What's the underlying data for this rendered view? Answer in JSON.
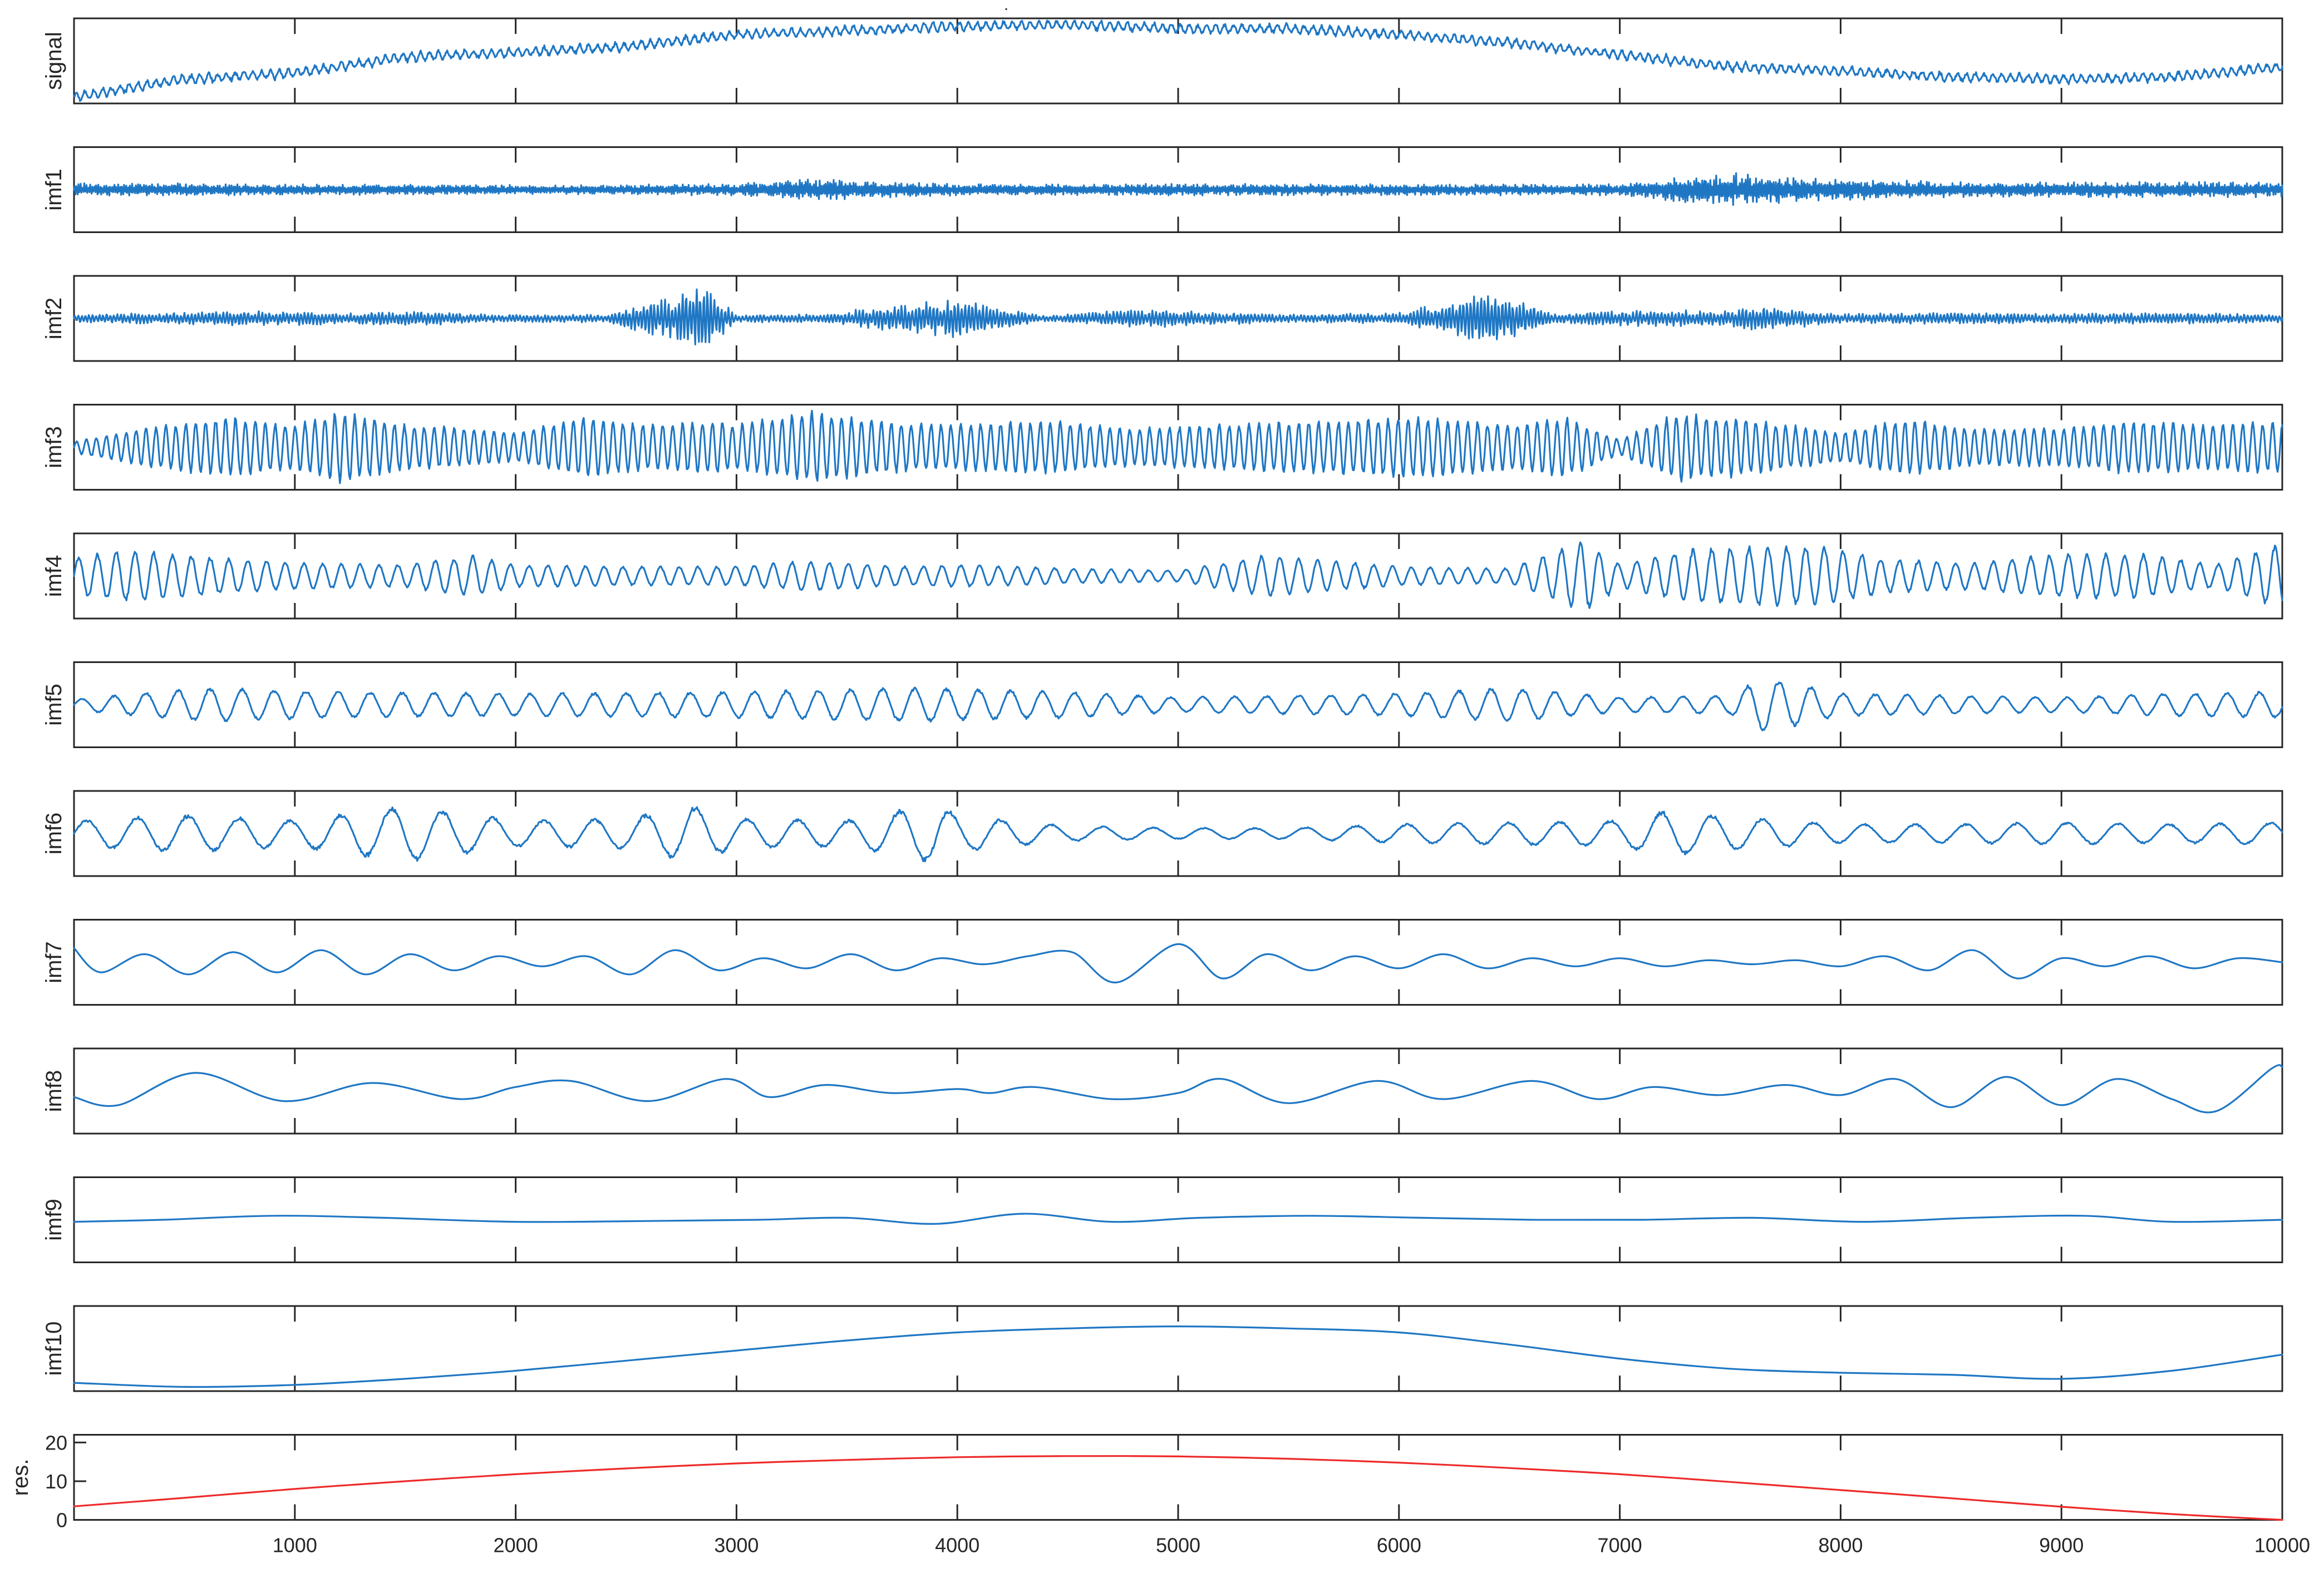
{
  "chart_data": {
    "type": "line",
    "title": ".",
    "xlim": [
      0,
      10000
    ],
    "x_ticks": [
      1000,
      2000,
      3000,
      4000,
      5000,
      6000,
      7000,
      8000,
      9000,
      10000
    ],
    "x_tick_labels": [
      "1000",
      "2000",
      "3000",
      "4000",
      "5000",
      "6000",
      "7000",
      "8000",
      "9000",
      "10000"
    ],
    "grid": false,
    "colors": {
      "trace": "#1f77c4",
      "residual": "#ee2a2a",
      "axes": "#262626"
    },
    "panels": [
      {
        "name": "signal",
        "label": "signal",
        "color": "#1f77c4",
        "x": [
          0,
          500,
          1000,
          1500,
          2000,
          2500,
          3000,
          3500,
          4000,
          4500,
          5000,
          5500,
          6000,
          6500,
          7000,
          7500,
          8000,
          8500,
          9000,
          9500,
          10000
        ],
        "y": [
          -0.9,
          -0.45,
          -0.3,
          0.1,
          0.2,
          0.35,
          0.65,
          0.75,
          0.85,
          0.9,
          0.8,
          0.8,
          0.65,
          0.45,
          0.15,
          -0.15,
          -0.25,
          -0.4,
          -0.45,
          -0.4,
          -0.15
        ]
      },
      {
        "name": "imf1",
        "label": "imf1",
        "color": "#1f77c4",
        "envelope_x": [
          0,
          1000,
          2000,
          3000,
          3300,
          4000,
          5000,
          6000,
          7000,
          7200,
          7500,
          7900,
          8500,
          9000,
          10000
        ],
        "envelope": [
          0.18,
          0.15,
          0.12,
          0.15,
          0.3,
          0.15,
          0.15,
          0.15,
          0.15,
          0.3,
          0.45,
          0.3,
          0.2,
          0.2,
          0.2
        ]
      },
      {
        "name": "imf2",
        "label": "imf2",
        "color": "#1f77c4",
        "envelope_x": [
          0,
          800,
          1200,
          1500,
          1900,
          2400,
          2700,
          2850,
          3000,
          3400,
          3700,
          4000,
          4400,
          4800,
          5500,
          6000,
          6450,
          6700,
          7000,
          7500,
          7650,
          8000,
          8500,
          9000,
          9500,
          10000
        ],
        "envelope": [
          0.1,
          0.2,
          0.15,
          0.2,
          0.1,
          0.1,
          0.55,
          0.9,
          0.1,
          0.12,
          0.35,
          0.5,
          0.08,
          0.25,
          0.1,
          0.15,
          0.75,
          0.12,
          0.2,
          0.22,
          0.35,
          0.12,
          0.15,
          0.12,
          0.15,
          0.1
        ]
      },
      {
        "name": "imf3",
        "label": "imf3",
        "color": "#1f77c4",
        "envelope_x": [
          0,
          300,
          700,
          1000,
          1200,
          1500,
          1800,
          2000,
          2300,
          2600,
          2900,
          3000,
          3350,
          3650,
          3900,
          4400,
          4800,
          5200,
          5600,
          6100,
          6500,
          6750,
          7000,
          7250,
          7500,
          8000,
          8300,
          8600,
          9000,
          9300,
          9700,
          10000
        ],
        "envelope": [
          0.15,
          0.5,
          0.8,
          0.6,
          0.95,
          0.6,
          0.5,
          0.4,
          0.8,
          0.6,
          0.7,
          0.6,
          0.95,
          0.7,
          0.6,
          0.7,
          0.5,
          0.6,
          0.7,
          0.8,
          0.6,
          0.8,
          0.2,
          0.9,
          0.8,
          0.4,
          0.75,
          0.5,
          0.5,
          0.7,
          0.6,
          0.7
        ]
      },
      {
        "name": "imf4",
        "label": "imf4",
        "color": "#1f77c4",
        "envelope_x": [
          0,
          250,
          500,
          1000,
          1500,
          1800,
          2000,
          2500,
          3000,
          3300,
          3800,
          4000,
          4500,
          5000,
          5400,
          6000,
          6500,
          6850,
          7000,
          7300,
          7650,
          7900,
          8200,
          8600,
          9000,
          9350,
          9700,
          10000
        ],
        "envelope": [
          0.5,
          0.7,
          0.55,
          0.35,
          0.3,
          0.55,
          0.3,
          0.25,
          0.25,
          0.4,
          0.25,
          0.3,
          0.2,
          0.15,
          0.55,
          0.25,
          0.2,
          0.95,
          0.3,
          0.7,
          0.8,
          0.8,
          0.45,
          0.35,
          0.6,
          0.6,
          0.3,
          0.9
        ]
      },
      {
        "name": "imf5",
        "label": "imf5",
        "color": "#1f77c4",
        "envelope_x": [
          0,
          600,
          1200,
          2000,
          3000,
          3800,
          4500,
          5000,
          6000,
          6500,
          7000,
          7500,
          7650,
          8000,
          8500,
          9000,
          9500,
          10000
        ],
        "envelope": [
          0.15,
          0.45,
          0.35,
          0.3,
          0.35,
          0.45,
          0.35,
          0.2,
          0.3,
          0.45,
          0.2,
          0.25,
          0.75,
          0.3,
          0.25,
          0.2,
          0.3,
          0.35
        ]
      },
      {
        "name": "imf6",
        "label": "imf6",
        "color": "#1f77c4",
        "envelope_x": [
          0,
          500,
          1000,
          1500,
          2000,
          2500,
          2800,
          3000,
          3500,
          3900,
          4000,
          4500,
          5000,
          5500,
          6000,
          6500,
          7000,
          7200,
          7500,
          8000,
          8500,
          9000,
          9500,
          10000
        ],
        "envelope": [
          0.35,
          0.5,
          0.35,
          0.75,
          0.35,
          0.4,
          0.75,
          0.4,
          0.35,
          0.8,
          0.5,
          0.2,
          0.15,
          0.15,
          0.25,
          0.3,
          0.35,
          0.6,
          0.45,
          0.25,
          0.25,
          0.3,
          0.25,
          0.3
        ]
      },
      {
        "name": "imf7",
        "label": "imf7",
        "color": "#1f77c4",
        "x": [
          0,
          120,
          320,
          520,
          720,
          920,
          1120,
          1320,
          1520,
          1720,
          1920,
          2120,
          2320,
          2520,
          2720,
          2920,
          3120,
          3320,
          3520,
          3720,
          3920,
          4120,
          4320,
          4520,
          4720,
          5000,
          5200,
          5400,
          5600,
          5800,
          6000,
          6200,
          6400,
          6600,
          6800,
          7000,
          7200,
          7400,
          7600,
          7800,
          8000,
          8200,
          8400,
          8600,
          8800,
          9000,
          9200,
          9400,
          9600,
          9800,
          10000
        ],
        "y": [
          0.35,
          -0.25,
          0.2,
          -0.3,
          0.25,
          -0.25,
          0.3,
          -0.3,
          0.2,
          -0.2,
          0.15,
          -0.1,
          0.15,
          -0.3,
          0.3,
          -0.2,
          0.1,
          -0.15,
          0.2,
          -0.2,
          0.1,
          -0.05,
          0.15,
          0.25,
          -0.5,
          0.45,
          -0.4,
          0.2,
          -0.2,
          0.15,
          -0.15,
          0.2,
          -0.15,
          0.1,
          -0.1,
          0.1,
          -0.1,
          0.05,
          -0.05,
          0.05,
          -0.1,
          0.15,
          -0.2,
          0.3,
          -0.4,
          0.1,
          -0.1,
          0.15,
          -0.15,
          0.1,
          0.0
        ]
      },
      {
        "name": "imf8",
        "label": "imf8",
        "color": "#1f77c4",
        "x": [
          0,
          200,
          550,
          950,
          1350,
          1750,
          2000,
          2250,
          2600,
          2950,
          3150,
          3400,
          3700,
          4000,
          4150,
          4350,
          4700,
          5000,
          5200,
          5500,
          5900,
          6200,
          6600,
          6900,
          7150,
          7450,
          7750,
          8000,
          8250,
          8500,
          8750,
          9000,
          9250,
          9500,
          9700,
          9950,
          10000
        ],
        "y": [
          -0.15,
          -0.35,
          0.45,
          -0.25,
          0.2,
          -0.2,
          0.1,
          0.25,
          -0.25,
          0.3,
          -0.15,
          0.15,
          -0.05,
          0.05,
          -0.05,
          0.1,
          -0.2,
          -0.05,
          0.3,
          -0.3,
          0.25,
          -0.2,
          0.25,
          -0.2,
          0.1,
          -0.1,
          0.15,
          -0.1,
          0.3,
          -0.4,
          0.35,
          -0.35,
          0.3,
          -0.2,
          -0.5,
          0.55,
          0.6
        ]
      },
      {
        "name": "imf9",
        "label": "imf9",
        "color": "#1f77c4",
        "x": [
          0,
          400,
          900,
          1400,
          2000,
          2600,
          3100,
          3500,
          3900,
          4300,
          4700,
          5100,
          5600,
          6100,
          6600,
          7100,
          7600,
          8100,
          8600,
          9100,
          9500,
          10000
        ],
        "y": [
          -0.05,
          0.0,
          0.1,
          0.05,
          -0.05,
          -0.03,
          0.0,
          0.05,
          -0.1,
          0.15,
          -0.05,
          0.05,
          0.1,
          0.05,
          0.0,
          0.0,
          0.05,
          -0.05,
          0.05,
          0.1,
          -0.05,
          0.0
        ]
      },
      {
        "name": "imf10",
        "label": "imf10",
        "color": "#1f77c4",
        "x": [
          0,
          500,
          1000,
          1500,
          2000,
          2500,
          3000,
          3500,
          4000,
          4500,
          5000,
          5500,
          6000,
          6500,
          7000,
          7500,
          8000,
          8500,
          9000,
          9500,
          10000
        ],
        "y": [
          -0.85,
          -0.95,
          -0.9,
          -0.75,
          -0.55,
          -0.3,
          -0.05,
          0.2,
          0.4,
          0.5,
          0.55,
          0.5,
          0.4,
          0.1,
          -0.25,
          -0.5,
          -0.6,
          -0.65,
          -0.75,
          -0.55,
          -0.15
        ]
      },
      {
        "name": "res",
        "label": "res.",
        "color": "#ee2a2a",
        "ylim": [
          0,
          22
        ],
        "y_ticks": [
          0,
          10,
          20
        ],
        "y_tick_labels": [
          "0",
          "10",
          "20"
        ],
        "x": [
          0,
          500,
          1000,
          1500,
          2000,
          2500,
          3000,
          3500,
          4000,
          4500,
          5000,
          5500,
          6000,
          6500,
          7000,
          7500,
          8000,
          8500,
          9000,
          9500,
          10000
        ],
        "y": [
          3.5,
          5.7,
          8.0,
          10.0,
          11.8,
          13.3,
          14.6,
          15.5,
          16.2,
          16.5,
          16.4,
          15.8,
          14.8,
          13.4,
          11.8,
          9.8,
          7.7,
          5.6,
          3.4,
          1.5,
          0.0
        ]
      }
    ]
  }
}
